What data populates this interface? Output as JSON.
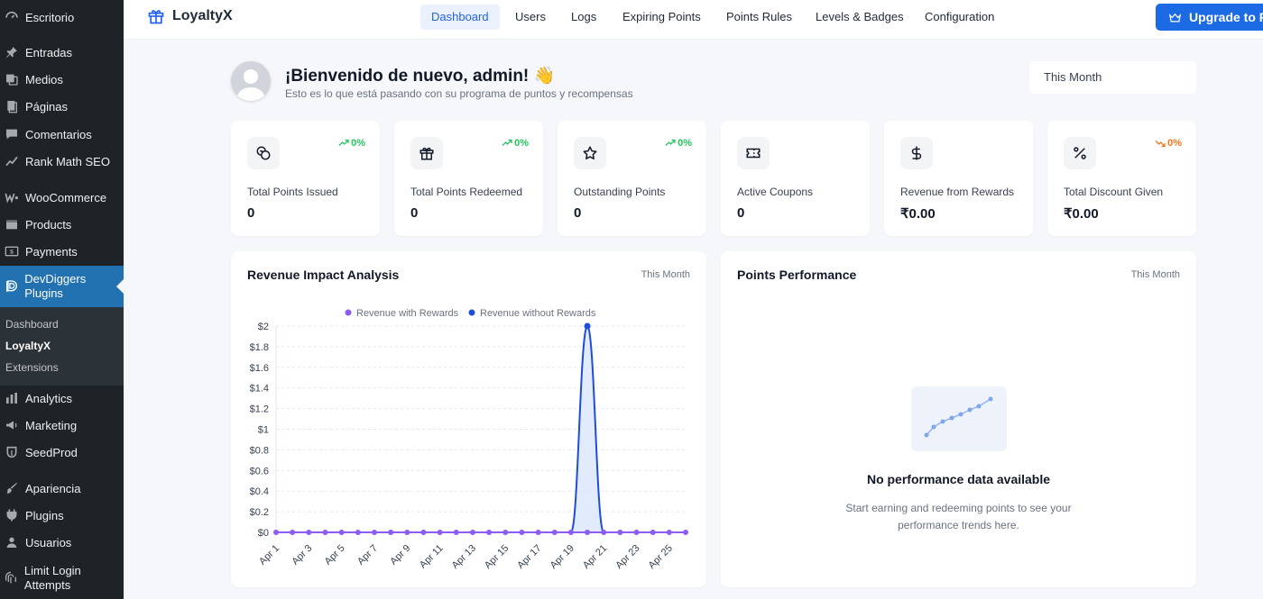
{
  "sidebar": {
    "items": [
      {
        "label": "Escritorio",
        "icon": "dashboard-icon"
      },
      {
        "label": "Entradas",
        "icon": "pin-icon"
      },
      {
        "label": "Medios",
        "icon": "media-icon"
      },
      {
        "label": "Páginas",
        "icon": "pages-icon"
      },
      {
        "label": "Comentarios",
        "icon": "comments-icon"
      },
      {
        "label": "Rank Math SEO",
        "icon": "rank-math-icon"
      },
      {
        "label": "WooCommerce",
        "icon": "woocommerce-icon"
      },
      {
        "label": "Products",
        "icon": "products-icon"
      },
      {
        "label": "Payments",
        "icon": "payments-icon"
      },
      {
        "label": "DevDiggers Plugins",
        "icon": "devdiggers-icon"
      },
      {
        "label": "Analytics",
        "icon": "analytics-icon"
      },
      {
        "label": "Marketing",
        "icon": "marketing-icon"
      },
      {
        "label": "SeedProd",
        "icon": "seedprod-icon"
      },
      {
        "label": "Apariencia",
        "icon": "appearance-icon"
      },
      {
        "label": "Plugins",
        "icon": "plugins-icon"
      },
      {
        "label": "Usuarios",
        "icon": "users-icon"
      },
      {
        "label": "Limit Login Attempts",
        "icon": "limit-login-icon"
      }
    ],
    "submenu": [
      "Dashboard",
      "LoyaltyX",
      "Extensions"
    ]
  },
  "header": {
    "brand": "LoyaltyX",
    "tabs": [
      "Dashboard",
      "Users",
      "Logs",
      "Expiring Points",
      "Points Rules",
      "Levels & Badges",
      "Configuration"
    ],
    "upgrade_label": "Upgrade to Pro"
  },
  "welcome": {
    "title": "¡Bienvenido de nuevo, admin! 👋",
    "subtitle": "Esto es lo que está pasando con su programa de puntos y recompensas",
    "period": "This Month"
  },
  "stats": [
    {
      "label": "Total Points Issued",
      "value": "0",
      "trend": "0%",
      "direction": "up",
      "icon": "coins-icon"
    },
    {
      "label": "Total Points Redeemed",
      "value": "0",
      "trend": "0%",
      "direction": "up",
      "icon": "gift-icon"
    },
    {
      "label": "Outstanding Points",
      "value": "0",
      "trend": "0%",
      "direction": "up",
      "icon": "star-icon"
    },
    {
      "label": "Active Coupons",
      "value": "0",
      "trend": "",
      "direction": "none",
      "icon": "ticket-icon"
    },
    {
      "label": "Revenue from Rewards",
      "value": "₹0.00",
      "trend": "",
      "direction": "none",
      "icon": "dollar-icon"
    },
    {
      "label": "Total Discount Given",
      "value": "₹0.00",
      "trend": "0%",
      "direction": "down",
      "icon": "percent-icon"
    }
  ],
  "revenue_panel": {
    "title": "Revenue Impact Analysis",
    "period": "This Month"
  },
  "points_panel": {
    "title": "Points Performance",
    "period": "This Month",
    "empty_title": "No performance data available",
    "empty_subtitle": "Start earning and redeeming points to see your performance trends here."
  },
  "colors": {
    "accent": "#2563eb",
    "sidebar_bg": "#1d2327",
    "sidebar_active": "#2271b1",
    "series_with": "#8b5cf6",
    "series_without": "#1d4ed8",
    "trend_up": "#22c55e",
    "trend_down": "#f97316"
  },
  "chart_data": {
    "type": "line",
    "title": "Revenue Impact Analysis",
    "x": [
      "Apr 1",
      "Apr 2",
      "Apr 3",
      "Apr 4",
      "Apr 5",
      "Apr 6",
      "Apr 7",
      "Apr 8",
      "Apr 9",
      "Apr 10",
      "Apr 11",
      "Apr 12",
      "Apr 13",
      "Apr 14",
      "Apr 15",
      "Apr 16",
      "Apr 17",
      "Apr 18",
      "Apr 19",
      "Apr 20",
      "Apr 21",
      "Apr 22",
      "Apr 23",
      "Apr 24",
      "Apr 25",
      "Apr 26"
    ],
    "x_tick_labels": [
      "Apr 1",
      "Apr 3",
      "Apr 5",
      "Apr 7",
      "Apr 9",
      "Apr 11",
      "Apr 13",
      "Apr 15",
      "Apr 17",
      "Apr 19",
      "Apr 21",
      "Apr 23",
      "Apr 25"
    ],
    "series": [
      {
        "name": "Revenue with Rewards",
        "values": [
          0,
          0,
          0,
          0,
          0,
          0,
          0,
          0,
          0,
          0,
          0,
          0,
          0,
          0,
          0,
          0,
          0,
          0,
          0,
          0,
          0,
          0,
          0,
          0,
          0,
          0
        ]
      },
      {
        "name": "Revenue without Rewards",
        "values": [
          0,
          0,
          0,
          0,
          0,
          0,
          0,
          0,
          0,
          0,
          0,
          0,
          0,
          0,
          0,
          0,
          0,
          0,
          0,
          2,
          0,
          0,
          0,
          0,
          0,
          0
        ]
      }
    ],
    "y_tick_labels": [
      "$0",
      "$0.2",
      "$0.4",
      "$0.6",
      "$0.8",
      "$1",
      "$1.2",
      "$1.4",
      "$1.6",
      "$1.8",
      "$2"
    ],
    "ylim": [
      0,
      2
    ],
    "legend": "top-center",
    "grid": true
  }
}
